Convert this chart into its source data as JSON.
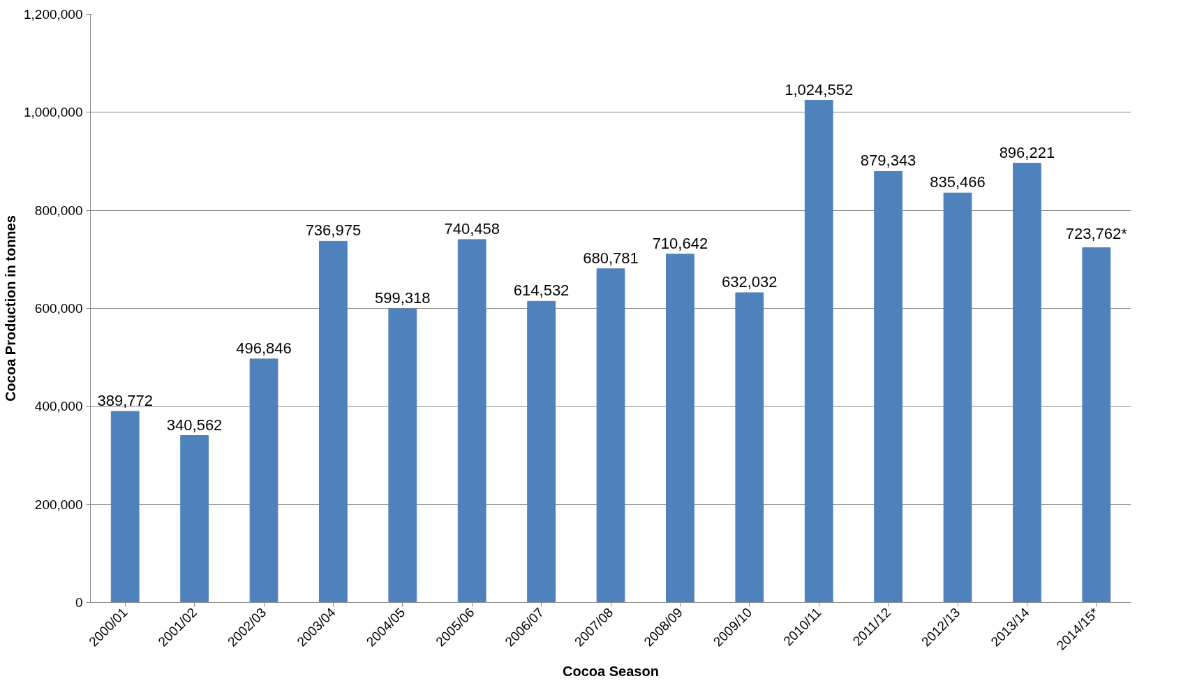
{
  "chart_data": {
    "type": "bar",
    "xlabel": "Cocoa Season",
    "ylabel": "Cocoa Production in tonnes",
    "categories": [
      "2000/01",
      "2001/02",
      "2002/03",
      "2003/04",
      "2004/05",
      "2005/06",
      "2006/07",
      "2007/08",
      "2008/09",
      "2009/10",
      "2010/11",
      "2011/12",
      "2012/13",
      "2013/14",
      "2014/15*"
    ],
    "values": [
      389772,
      340562,
      496846,
      736975,
      599318,
      740458,
      614532,
      680781,
      710642,
      632032,
      1024552,
      879343,
      835466,
      896221,
      723762
    ],
    "value_labels": [
      "389,772",
      "340,562",
      "496,846",
      "736,975",
      "599,318",
      "740,458",
      "614,532",
      "680,781",
      "710,642",
      "632,032",
      "1,024,552",
      "879,343",
      "835,466",
      "896,221",
      "723,762*"
    ],
    "color": "#4f81bd",
    "ylim": [
      0,
      1200000
    ],
    "yticks": [
      0,
      {
        "value": 200000,
        "label": "200,000"
      },
      {
        "value": 400000,
        "label": "400,000"
      },
      {
        "value": 600000,
        "label": "600,000"
      },
      {
        "value": 800000,
        "label": "800,000"
      },
      {
        "value": 1000000,
        "label": "1,000,000"
      },
      {
        "value": 1200000,
        "label": "1,200,000"
      }
    ],
    "grid": "y"
  }
}
